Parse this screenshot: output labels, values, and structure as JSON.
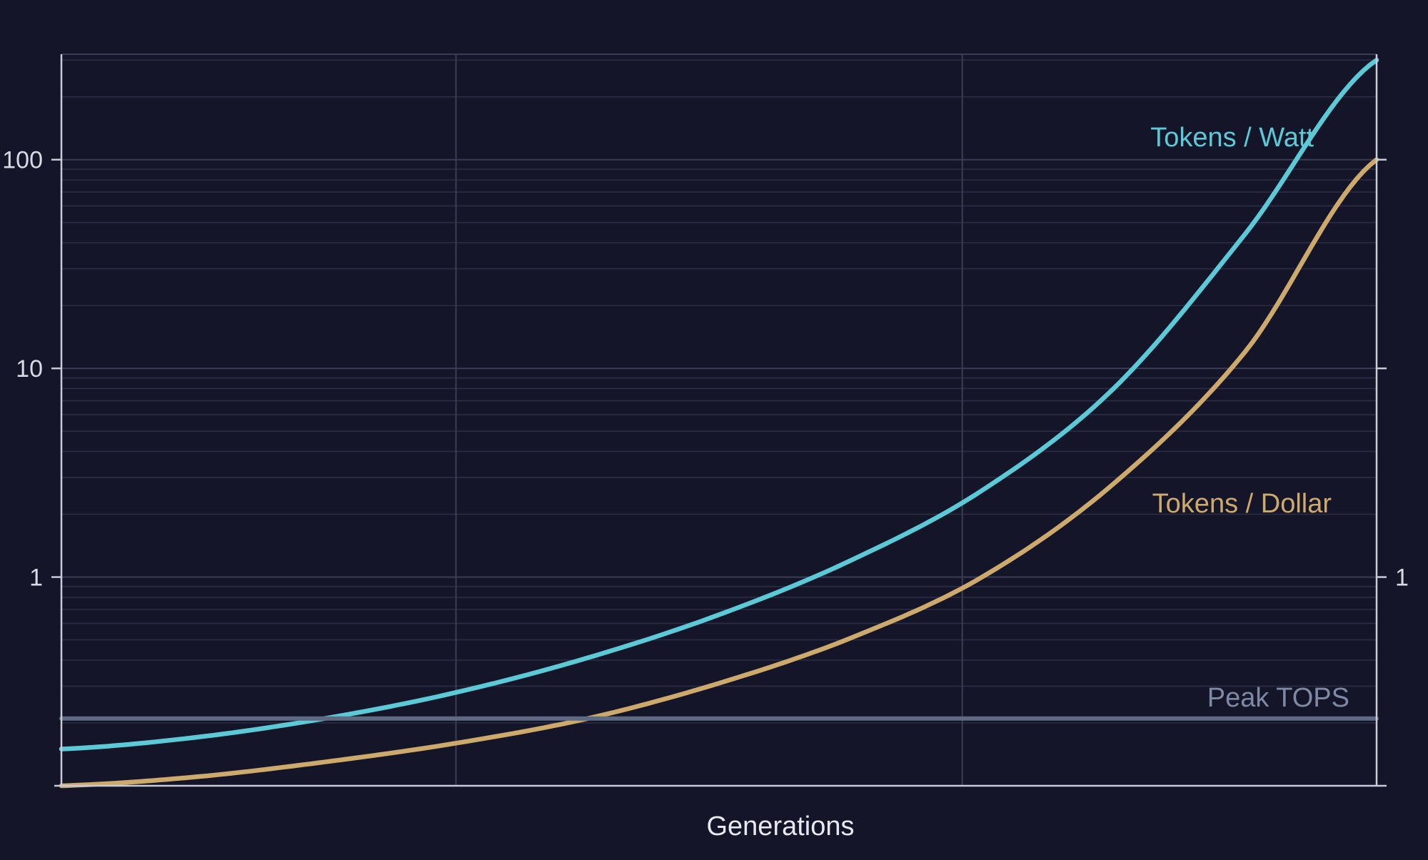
{
  "colors": {
    "background": "#141529",
    "grid_major": "#3a3d55",
    "grid_minor": "#2b2d44",
    "axis": "#c9cbd6",
    "tokens_per_watt": "#5ccad6",
    "tokens_per_dollar": "#cda96b",
    "peak_tops": "#5d6a82"
  },
  "chart_data": {
    "type": "line",
    "title": "",
    "xlabel": "Generations",
    "ylabel": "",
    "x_scale": "linear",
    "y_scale": "log",
    "xlim": [
      0,
      100
    ],
    "ylim": [
      0.1,
      320
    ],
    "y_ticks_left": [
      {
        "value": 1,
        "label": "1"
      },
      {
        "value": 10,
        "label": "10"
      },
      {
        "value": 100,
        "label": "100"
      }
    ],
    "y_ticks_right": [
      {
        "value": 1,
        "label": "1"
      }
    ],
    "grid": true,
    "legend": "inline labels at line ends",
    "series": [
      {
        "name": "Tokens / Watt",
        "color_key": "tokens_per_watt",
        "x": [
          0,
          10,
          20,
          30,
          40,
          50,
          60,
          70,
          80,
          90,
          100
        ],
        "values": [
          0.15,
          0.17,
          0.21,
          0.28,
          0.41,
          0.66,
          1.2,
          2.6,
          8,
          44,
          300
        ]
      },
      {
        "name": "Tokens / Dollar",
        "color_key": "tokens_per_dollar",
        "x": [
          0,
          10,
          20,
          30,
          40,
          50,
          60,
          70,
          80,
          90,
          100
        ],
        "values": [
          0.1,
          0.11,
          0.13,
          0.16,
          0.21,
          0.31,
          0.51,
          1.0,
          2.8,
          12,
          100
        ]
      },
      {
        "name": "Peak TOPS",
        "color_key": "peak_tops",
        "x": [
          0,
          100
        ],
        "values": [
          0.21,
          0.21
        ]
      }
    ]
  }
}
